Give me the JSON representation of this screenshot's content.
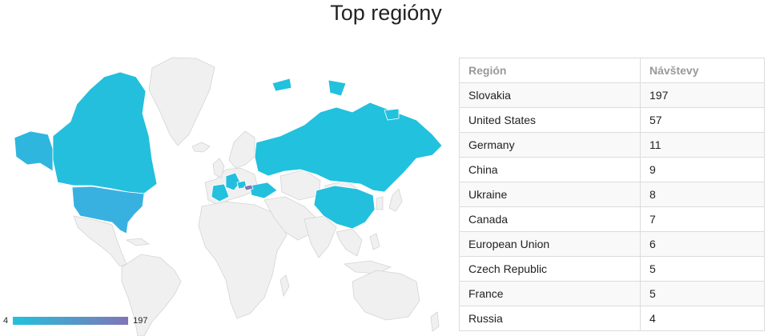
{
  "page": {
    "title": "Top regióny"
  },
  "legend": {
    "min_label": "4",
    "max_label": "197",
    "color_low": "#22c1dd",
    "color_high": "#8075b6"
  },
  "map": {
    "base_color": "#f0f0f0",
    "highlighted_regions": [
      "Slovakia",
      "United States",
      "Germany",
      "China",
      "Ukraine",
      "Canada",
      "Czech Republic",
      "France",
      "Russia"
    ]
  },
  "table": {
    "headers": [
      "Región",
      "Návštevy"
    ],
    "rows": [
      {
        "region": "Slovakia",
        "visits": "197"
      },
      {
        "region": "United States",
        "visits": "57"
      },
      {
        "region": "Germany",
        "visits": "11"
      },
      {
        "region": "China",
        "visits": "9"
      },
      {
        "region": "Ukraine",
        "visits": "8"
      },
      {
        "region": "Canada",
        "visits": "7"
      },
      {
        "region": "European Union",
        "visits": "6"
      },
      {
        "region": "Czech Republic",
        "visits": "5"
      },
      {
        "region": "France",
        "visits": "5"
      },
      {
        "region": "Russia",
        "visits": "4"
      }
    ]
  }
}
